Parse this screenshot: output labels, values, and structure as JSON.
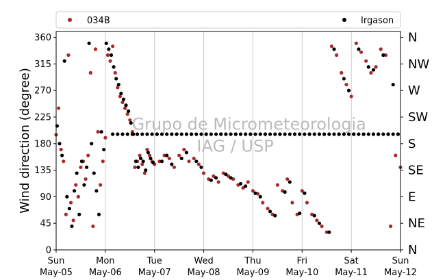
{
  "chart_data": {
    "type": "scatter",
    "title": "",
    "xlabel": "",
    "ylabel": "Wind direction (degree)",
    "ylim": [
      0,
      370
    ],
    "xlim_days": [
      0,
      7
    ],
    "yticks": [
      0,
      45,
      90,
      135,
      180,
      225,
      270,
      315,
      360
    ],
    "x_ticks": [
      {
        "day": "Sun",
        "date": "May-05"
      },
      {
        "day": "Mon",
        "date": "May-06"
      },
      {
        "day": "Tue",
        "date": "May-07"
      },
      {
        "day": "Wed",
        "date": "May-08"
      },
      {
        "day": "Thu",
        "date": "May-09"
      },
      {
        "day": "Fri",
        "date": "May-10"
      },
      {
        "day": "Sat",
        "date": "May-11"
      },
      {
        "day": "Sun",
        "date": "May-12"
      }
    ],
    "compass_labels": [
      "N",
      "NE",
      "E",
      "SE",
      "S",
      "SW",
      "W",
      "NW",
      "N"
    ],
    "grid": "vertical",
    "legend": {
      "placement": "top",
      "entries": [
        {
          "name": "034B",
          "color": "#a52a2a"
        },
        {
          "name": "Irgason",
          "color": "#000000"
        }
      ]
    },
    "watermark": [
      "Grupo de Micrometeorologia",
      "IAG / USP"
    ],
    "series": [
      {
        "name": "034B",
        "color": "#a52a2a",
        "x": [
          0.0,
          0.05,
          0.1,
          0.15,
          0.2,
          0.25,
          0.3,
          0.35,
          0.4,
          0.45,
          0.5,
          0.55,
          0.6,
          0.65,
          0.7,
          0.75,
          0.8,
          0.85,
          0.9,
          0.95,
          1.0,
          1.05,
          1.1,
          1.15,
          1.2,
          1.25,
          1.3,
          1.35,
          1.4,
          1.45,
          1.5,
          1.55,
          1.6,
          1.65,
          1.7,
          1.75,
          1.8,
          1.85,
          1.9,
          1.95,
          2.0,
          2.1,
          2.2,
          2.3,
          2.4,
          2.5,
          2.6,
          2.7,
          2.8,
          2.9,
          3.0,
          3.1,
          3.2,
          3.3,
          3.4,
          3.5,
          3.6,
          3.7,
          3.8,
          3.9,
          4.0,
          4.1,
          4.2,
          4.3,
          4.4,
          4.5,
          4.6,
          4.7,
          4.8,
          4.9,
          5.0,
          5.1,
          5.2,
          5.3,
          5.4,
          5.5,
          5.6,
          5.7,
          5.8,
          5.9,
          6.0,
          6.1,
          6.2,
          6.3,
          6.4,
          6.5,
          6.6,
          6.7,
          6.8,
          6.9,
          7.0
        ],
        "y": [
          195,
          240,
          170,
          150,
          60,
          330,
          80,
          50,
          110,
          90,
          140,
          150,
          120,
          160,
          300,
          40,
          340,
          200,
          110,
          150,
          190,
          330,
          320,
          345,
          300,
          275,
          260,
          250,
          240,
          230,
          220,
          200,
          140,
          150,
          160,
          145,
          130,
          170,
          160,
          150,
          145,
          150,
          160,
          155,
          140,
          160,
          170,
          150,
          155,
          145,
          130,
          120,
          125,
          115,
          130,
          125,
          120,
          110,
          105,
          115,
          100,
          95,
          80,
          70,
          60,
          110,
          100,
          120,
          80,
          60,
          100,
          80,
          60,
          50,
          40,
          30,
          345,
          330,
          300,
          280,
          260,
          350,
          335,
          320,
          300,
          310,
          340,
          330,
          40,
          160,
          140
        ]
      },
      {
        "name": "Irgason",
        "color": "#000000",
        "x": [
          0.02,
          0.07,
          0.12,
          0.17,
          0.22,
          0.27,
          0.32,
          0.37,
          0.42,
          0.47,
          0.52,
          0.57,
          0.62,
          0.67,
          0.72,
          0.77,
          0.82,
          0.87,
          0.92,
          0.97,
          1.02,
          1.07,
          1.12,
          1.17,
          1.22,
          1.27,
          1.32,
          1.37,
          1.42,
          1.47,
          1.52,
          1.57,
          1.62,
          1.67,
          1.72,
          1.77,
          1.82,
          1.87,
          1.92,
          1.97,
          2.05,
          2.15,
          2.25,
          2.35,
          2.45,
          2.55,
          2.65,
          2.75,
          2.85,
          2.95,
          3.05,
          3.15,
          3.25,
          3.35,
          3.45,
          3.55,
          3.65,
          3.75,
          3.85,
          3.95,
          4.05,
          4.15,
          4.25,
          4.35,
          4.45,
          4.55,
          4.65,
          4.75,
          4.85,
          4.95,
          5.05,
          5.15,
          5.25,
          5.35,
          5.45,
          5.55,
          5.65,
          5.75,
          5.85,
          5.95,
          6.05,
          6.15,
          6.25,
          6.35,
          6.45,
          6.55,
          6.65,
          6.75,
          6.85,
          6.95
        ],
        "y": [
          210,
          180,
          160,
          320,
          90,
          70,
          40,
          100,
          130,
          60,
          150,
          110,
          140,
          350,
          180,
          130,
          100,
          60,
          200,
          170,
          350,
          340,
          330,
          310,
          290,
          280,
          265,
          255,
          245,
          235,
          215,
          196,
          150,
          140,
          155,
          150,
          135,
          165,
          155,
          148,
          196,
          150,
          160,
          145,
          196,
          155,
          165,
          196,
          150,
          140,
          196,
          118,
          122,
          196,
          128,
          122,
          196,
          112,
          108,
          196,
          96,
          90,
          196,
          65,
          58,
          196,
          98,
          115,
          196,
          62,
          96,
          196,
          58,
          45,
          196,
          30,
          340,
          196,
          290,
          270,
          196,
          340,
          196,
          310,
          305,
          196,
          330,
          196,
          280,
          196
        ]
      },
      {
        "name": "Irgason",
        "color": "#000000",
        "x": [
          1.15,
          1.25,
          1.35,
          1.45,
          1.55,
          1.65,
          1.75,
          1.85,
          1.95,
          2.05,
          2.15,
          2.25,
          2.35,
          2.45,
          2.55,
          2.65,
          2.75,
          2.85,
          2.95,
          3.05,
          3.15,
          3.25,
          3.35,
          3.45,
          3.55,
          3.65,
          3.75,
          3.85,
          3.95,
          4.05,
          4.15,
          4.25,
          4.35,
          4.45,
          4.55,
          4.65,
          4.75,
          4.85,
          4.95,
          5.05,
          5.15,
          5.25,
          5.35,
          5.45,
          5.55,
          5.65,
          5.75,
          5.85,
          5.95,
          6.05,
          6.15,
          6.25,
          6.35,
          6.45,
          6.55,
          6.65,
          6.75,
          6.85,
          6.95
        ],
        "y": [
          196,
          196,
          196,
          196,
          196,
          196,
          196,
          196,
          196,
          196,
          196,
          196,
          196,
          196,
          196,
          196,
          196,
          196,
          196,
          196,
          196,
          196,
          196,
          196,
          196,
          196,
          196,
          196,
          196,
          196,
          196,
          196,
          196,
          196,
          196,
          196,
          196,
          196,
          196,
          196,
          196,
          196,
          196,
          196,
          196,
          196,
          196,
          196,
          196,
          196,
          196,
          196,
          196,
          196,
          196,
          196,
          196,
          196,
          196
        ]
      }
    ]
  }
}
